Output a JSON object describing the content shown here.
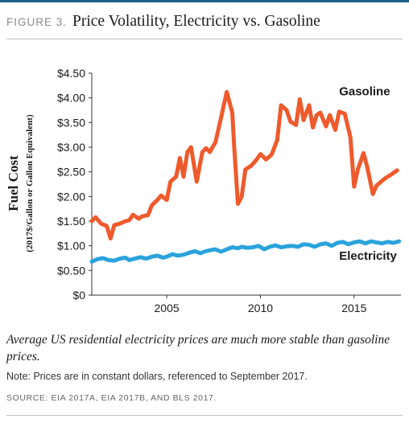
{
  "figure": {
    "label": "FIGURE 3.",
    "title": "Price Volatility, Electricity vs. Gasoline",
    "caption": "Average US residential electricity prices are much more stable than gasoline prices.",
    "note": "Note: Prices are in constant dollars, referenced to September 2017.",
    "source": "SOURCE: EIA 2017A, EIA 2017B, AND BLS 2017."
  },
  "chart_data": {
    "type": "line",
    "ylabel": "Fuel Cost",
    "ylabel_sub": "(2017$/Gallon or Gallon Equivalent)",
    "xlabel": "",
    "xlim": [
      2001,
      2017.5
    ],
    "ylim": [
      0,
      4.5
    ],
    "x_ticks": [
      2005,
      2010,
      2015
    ],
    "x_tick_labels": [
      "2005",
      "2010",
      "2015"
    ],
    "y_ticks": [
      0,
      0.5,
      1.0,
      1.5,
      2.0,
      2.5,
      3.0,
      3.5,
      4.0,
      4.5
    ],
    "y_tick_labels": [
      "$0",
      "$0.50",
      "$1.00",
      "$1.50",
      "$2.00",
      "$2.50",
      "$3.00",
      "$3.50",
      "$4.00",
      "$4.50"
    ],
    "grid": false,
    "series": [
      {
        "name": "Gasoline",
        "color": "#ef5a2c",
        "x": [
          2001.0,
          2001.2,
          2001.5,
          2001.8,
          2002.0,
          2002.2,
          2002.5,
          2002.8,
          2003.0,
          2003.2,
          2003.5,
          2003.7,
          2004.0,
          2004.2,
          2004.5,
          2004.7,
          2005.0,
          2005.2,
          2005.5,
          2005.7,
          2005.9,
          2006.1,
          2006.3,
          2006.6,
          2006.9,
          2007.1,
          2007.3,
          2007.6,
          2007.9,
          2008.2,
          2008.5,
          2008.6,
          2008.8,
          2009.0,
          2009.2,
          2009.5,
          2009.8,
          2010.0,
          2010.3,
          2010.6,
          2010.9,
          2011.1,
          2011.4,
          2011.6,
          2011.9,
          2012.1,
          2012.3,
          2012.6,
          2012.8,
          2013.0,
          2013.2,
          2013.5,
          2013.7,
          2014.0,
          2014.2,
          2014.5,
          2014.8,
          2015.0,
          2015.2,
          2015.5,
          2015.7,
          2016.0,
          2016.2,
          2016.5,
          2016.7,
          2017.0,
          2017.3
        ],
        "y": [
          1.5,
          1.58,
          1.45,
          1.4,
          1.15,
          1.42,
          1.45,
          1.5,
          1.52,
          1.63,
          1.55,
          1.6,
          1.62,
          1.82,
          1.93,
          2.02,
          1.93,
          2.3,
          2.4,
          2.78,
          2.4,
          2.9,
          3.0,
          2.3,
          2.9,
          2.98,
          2.9,
          3.1,
          3.6,
          4.12,
          3.7,
          3.0,
          1.85,
          2.0,
          2.55,
          2.62,
          2.75,
          2.86,
          2.75,
          2.85,
          3.15,
          3.85,
          3.75,
          3.52,
          3.45,
          3.97,
          3.55,
          3.85,
          3.4,
          3.65,
          3.7,
          3.42,
          3.65,
          3.35,
          3.72,
          3.68,
          3.2,
          2.2,
          2.55,
          2.88,
          2.6,
          2.05,
          2.22,
          2.32,
          2.38,
          2.45,
          2.53
        ]
      },
      {
        "name": "Electricity",
        "color": "#2aa3dc",
        "x": [
          2001.0,
          2001.3,
          2001.6,
          2001.9,
          2002.2,
          2002.5,
          2002.8,
          2003.0,
          2003.3,
          2003.6,
          2003.9,
          2004.2,
          2004.5,
          2004.8,
          2005.0,
          2005.3,
          2005.6,
          2005.9,
          2006.2,
          2006.5,
          2006.8,
          2007.0,
          2007.3,
          2007.6,
          2007.9,
          2008.2,
          2008.5,
          2008.8,
          2009.0,
          2009.3,
          2009.6,
          2009.9,
          2010.2,
          2010.5,
          2010.8,
          2011.1,
          2011.4,
          2011.7,
          2012.0,
          2012.3,
          2012.6,
          2012.9,
          2013.2,
          2013.5,
          2013.8,
          2014.1,
          2014.4,
          2014.7,
          2015.0,
          2015.3,
          2015.6,
          2015.9,
          2016.2,
          2016.5,
          2016.8,
          2017.1,
          2017.4
        ],
        "y": [
          0.68,
          0.73,
          0.75,
          0.71,
          0.7,
          0.74,
          0.76,
          0.71,
          0.74,
          0.77,
          0.74,
          0.78,
          0.8,
          0.76,
          0.78,
          0.83,
          0.8,
          0.82,
          0.86,
          0.89,
          0.85,
          0.88,
          0.91,
          0.93,
          0.88,
          0.93,
          0.97,
          0.95,
          0.98,
          0.96,
          0.97,
          1.0,
          0.93,
          0.98,
          1.01,
          0.97,
          0.99,
          1.0,
          0.98,
          1.03,
          1.02,
          0.98,
          1.03,
          1.05,
          1.0,
          1.06,
          1.08,
          1.03,
          1.07,
          1.09,
          1.05,
          1.09,
          1.07,
          1.05,
          1.08,
          1.06,
          1.09
        ]
      }
    ],
    "annotations": [
      {
        "text": "Gasoline",
        "x": 2014.2,
        "y": 4.05,
        "color": "#1a1a1a"
      },
      {
        "text": "Electricity",
        "x": 2014.2,
        "y": 0.72,
        "color": "#1a1a1a"
      }
    ]
  }
}
